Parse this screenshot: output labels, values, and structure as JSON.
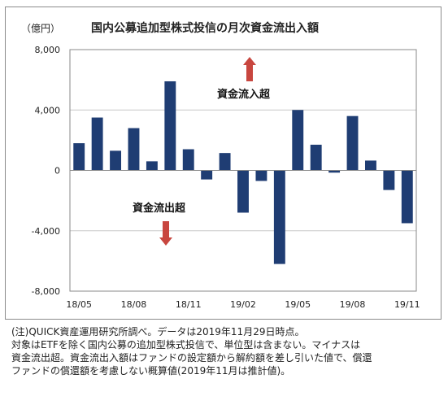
{
  "unit_label": "（億円）",
  "title": "国内公募追加型株式投信の月次資金流出入額",
  "annotations": {
    "inflow": "資金流入超",
    "outflow": "資金流出超"
  },
  "colors": {
    "bar": "#1f3d73",
    "arrow": "#c8463f",
    "grid": "#c8c8c8",
    "axis": "#888888"
  },
  "note_lines": [
    "(注)QUICK資産運用研究所調べ。データは2019年11月29日時点。",
    "対象はETFを除く国内公募の追加型株式投信で、単位型は含まない。マイナスは",
    "資金流出超。資金流出入額はファンドの設定額から解約額を差し引いた値で、償還",
    "ファンドの償還額を考慮しない概算値(2019年11月は推計値)。"
  ],
  "chart_data": {
    "type": "bar",
    "title": "国内公募追加型株式投信の月次資金流出入額",
    "ylabel": "（億円）",
    "xlabel": "",
    "ylim": [
      -8000,
      8000
    ],
    "yticks": [
      8000,
      4000,
      0,
      -4000,
      -8000
    ],
    "ytick_labels": [
      "8,000",
      "4,000",
      "0",
      "-4,000",
      "-8,000"
    ],
    "grid": true,
    "categories": [
      "18/05",
      "18/06",
      "18/07",
      "18/08",
      "18/09",
      "18/10",
      "18/11",
      "18/12",
      "19/01",
      "19/02",
      "19/03",
      "19/04",
      "19/05",
      "19/06",
      "19/07",
      "19/08",
      "19/09",
      "19/10",
      "19/11"
    ],
    "xtick_labels": [
      "18/05",
      "",
      "",
      "18/08",
      "",
      "",
      "18/11",
      "",
      "",
      "19/02",
      "",
      "",
      "19/05",
      "",
      "",
      "19/08",
      "",
      "",
      "19/11"
    ],
    "values": [
      1800,
      3500,
      1300,
      2800,
      600,
      5900,
      1400,
      -600,
      1150,
      -2800,
      -700,
      -6200,
      4000,
      1700,
      -150,
      3600,
      650,
      -1300,
      -3500
    ]
  }
}
